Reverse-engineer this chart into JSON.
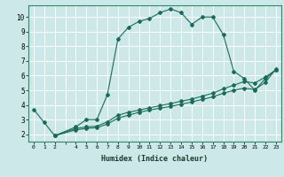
{
  "title": "",
  "xlabel": "Humidex (Indice chaleur)",
  "bg_color": "#cce8e8",
  "grid_color": "#ffffff",
  "line_color": "#1a6b5a",
  "xlim": [
    -0.5,
    23.5
  ],
  "ylim": [
    1.5,
    10.8
  ],
  "xticks": [
    0,
    1,
    2,
    3,
    4,
    5,
    6,
    7,
    8,
    9,
    10,
    11,
    12,
    13,
    14,
    15,
    16,
    17,
    18,
    19,
    20,
    21,
    22,
    23
  ],
  "xtick_labels": [
    "0",
    "1",
    "2",
    "",
    "4",
    "5",
    "6",
    "7",
    "8",
    "9",
    "10",
    "11",
    "12",
    "13",
    "14",
    "15",
    "16",
    "17",
    "18",
    "19",
    "20",
    "21",
    "22",
    "23"
  ],
  "yticks": [
    2,
    3,
    4,
    5,
    6,
    7,
    8,
    9,
    10
  ],
  "ytick_labels": [
    "2",
    "3",
    "4",
    "5",
    "6",
    "7",
    "8",
    "9",
    "10"
  ],
  "line1_x": [
    0,
    1,
    2,
    4,
    5,
    6,
    7,
    8,
    9,
    10,
    11,
    12,
    13,
    14,
    15,
    16,
    17,
    18,
    19,
    20,
    21,
    22,
    23
  ],
  "line1_y": [
    3.7,
    2.8,
    1.9,
    2.5,
    3.0,
    3.0,
    4.7,
    8.5,
    9.3,
    9.7,
    9.9,
    10.3,
    10.55,
    10.3,
    9.5,
    10.0,
    10.0,
    8.8,
    6.3,
    5.8,
    5.0,
    5.8,
    6.4
  ],
  "line2_x": [
    2,
    4,
    5,
    6,
    7,
    8,
    9,
    10,
    11,
    12,
    13,
    14,
    15,
    16,
    17,
    18,
    19,
    20,
    21,
    22,
    23
  ],
  "line2_y": [
    1.9,
    2.4,
    2.5,
    2.55,
    2.85,
    3.3,
    3.5,
    3.65,
    3.8,
    3.95,
    4.1,
    4.25,
    4.4,
    4.6,
    4.8,
    5.1,
    5.35,
    5.6,
    5.5,
    5.9,
    6.4
  ],
  "line3_x": [
    2,
    4,
    5,
    6,
    7,
    8,
    9,
    10,
    11,
    12,
    13,
    14,
    15,
    16,
    17,
    18,
    19,
    20,
    21,
    22,
    23
  ],
  "line3_y": [
    1.9,
    2.3,
    2.4,
    2.45,
    2.7,
    3.1,
    3.3,
    3.5,
    3.65,
    3.78,
    3.9,
    4.05,
    4.2,
    4.38,
    4.55,
    4.8,
    5.0,
    5.15,
    5.05,
    5.55,
    6.45
  ]
}
